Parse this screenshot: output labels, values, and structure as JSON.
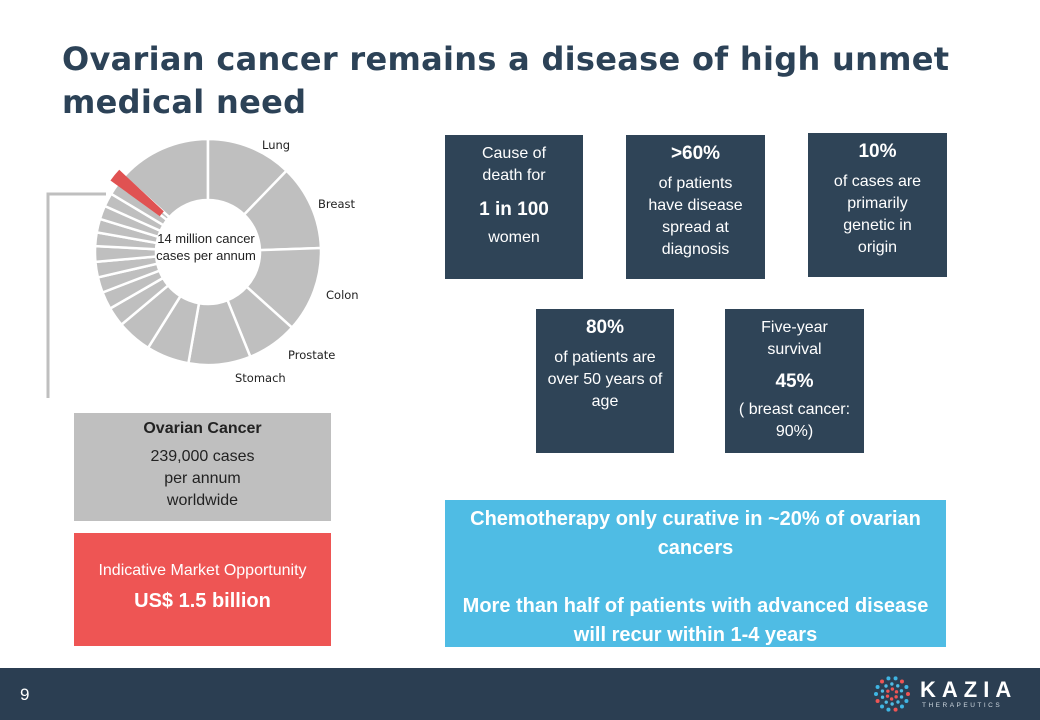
{
  "title": "Ovarian cancer remains a disease of high unmet medical need",
  "chart_data": {
    "type": "pie",
    "center_label": "14 million cancer cases per annum",
    "labels": [
      "Lung",
      "Breast",
      "Colon",
      "Prostate",
      "Stomach"
    ],
    "highlight_slice": "Ovarian Cancer",
    "colors": {
      "slices": "#bfbfbf",
      "highlight": "#e05252"
    }
  },
  "ovarian_box": {
    "heading": "Ovarian Cancer",
    "lines": [
      "239,000 cases",
      "per annum",
      "worldwide"
    ]
  },
  "market_box": {
    "label": "Indicative Market Opportunity",
    "value": "US$ 1.5 billion"
  },
  "stats": {
    "s1": {
      "top": "Cause of death for",
      "big": "1 in 100",
      "bottom": "women"
    },
    "s2": {
      "big": ">60%",
      "bottom": "of patients have disease spread at diagnosis"
    },
    "s3": {
      "big": "10%",
      "bottom": "of cases are primarily genetic in origin"
    },
    "s4": {
      "big": "80%",
      "bottom": "of patients are over 50 years of age"
    },
    "s5": {
      "top": "Five-year survival",
      "big": "45%",
      "bottom": "( breast cancer: 90%)"
    }
  },
  "callout": {
    "line1": "Chemotherapy only curative in ~20% of ovarian cancers",
    "line2": "More than half of patients with advanced disease will recur within 1-4 years"
  },
  "footer": {
    "page_number": "9",
    "logo_text": "KAZIA",
    "logo_sub": "THERAPEUTICS"
  },
  "colors": {
    "navy": "#2f4457",
    "red": "#ee5554",
    "blue": "#4fbce4",
    "grey": "#bfbfbf"
  }
}
